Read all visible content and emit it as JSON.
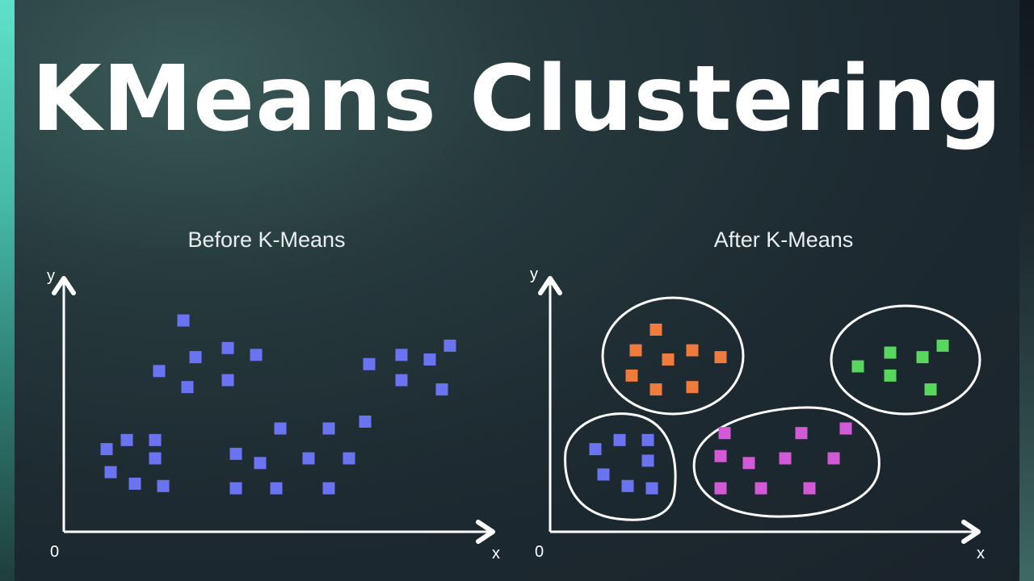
{
  "title": "KMeans Clustering",
  "colors": {
    "background": "#1d2a31",
    "axis": "#ffffff",
    "unclustered": "#6b74f0",
    "cluster_orange": "#ef7b3f",
    "cluster_green": "#57d85d",
    "cluster_blue": "#6b74f0",
    "cluster_magenta": "#d25ad6"
  },
  "chart_data": [
    {
      "type": "scatter",
      "title": "Before K-Means",
      "xlabel": "x",
      "ylabel": "y",
      "origin_label": "0",
      "xlim": [
        0,
        100
      ],
      "ylim": [
        0,
        100
      ],
      "grid": false,
      "series": [
        {
          "color": "#6b74f0",
          "points": [
            [
              8,
              31
            ],
            [
              13,
              35
            ],
            [
              20,
              35
            ],
            [
              20,
              27
            ],
            [
              9,
              21
            ],
            [
              15,
              16
            ],
            [
              22,
              15
            ],
            [
              21,
              65
            ],
            [
              27,
              87
            ],
            [
              30,
              71
            ],
            [
              38,
              75
            ],
            [
              38,
              61
            ],
            [
              28,
              58
            ],
            [
              45,
              72
            ],
            [
              40,
              29
            ],
            [
              46,
              25
            ],
            [
              51,
              40
            ],
            [
              58,
              27
            ],
            [
              63,
              40
            ],
            [
              68,
              27
            ],
            [
              40,
              14
            ],
            [
              50,
              14
            ],
            [
              63,
              14
            ],
            [
              72,
              43
            ],
            [
              73,
              68
            ],
            [
              81,
              61
            ],
            [
              81,
              72
            ],
            [
              88,
              70
            ],
            [
              91,
              57
            ],
            [
              93,
              76
            ]
          ]
        }
      ]
    },
    {
      "type": "scatter",
      "title": "After K-Means",
      "xlabel": "x",
      "ylabel": "y",
      "origin_label": "0",
      "xlim": [
        0,
        100
      ],
      "ylim": [
        0,
        100
      ],
      "grid": false,
      "series": [
        {
          "color": "#ef7b3f",
          "points": [
            [
              24,
              83
            ],
            [
              19,
              74
            ],
            [
              27,
              70
            ],
            [
              33,
              74
            ],
            [
              40,
              71
            ],
            [
              18,
              63
            ],
            [
              24,
              57
            ],
            [
              33,
              58
            ]
          ]
        },
        {
          "color": "#57d85d",
          "points": [
            [
              74,
              67
            ],
            [
              82,
              73
            ],
            [
              90,
              71
            ],
            [
              95,
              76
            ],
            [
              82,
              63
            ],
            [
              92,
              57
            ]
          ]
        },
        {
          "color": "#6b74f0",
          "points": [
            [
              9,
              31
            ],
            [
              15,
              35
            ],
            [
              22,
              35
            ],
            [
              22,
              26
            ],
            [
              11,
              20
            ],
            [
              17,
              15
            ],
            [
              23,
              14
            ]
          ]
        },
        {
          "color": "#d25ad6",
          "points": [
            [
              41,
              38
            ],
            [
              60,
              38
            ],
            [
              71,
              40
            ],
            [
              40,
              28
            ],
            [
              47,
              25
            ],
            [
              56,
              27
            ],
            [
              68,
              27
            ],
            [
              40,
              14
            ],
            [
              50,
              14
            ],
            [
              62,
              14
            ]
          ]
        }
      ]
    }
  ]
}
